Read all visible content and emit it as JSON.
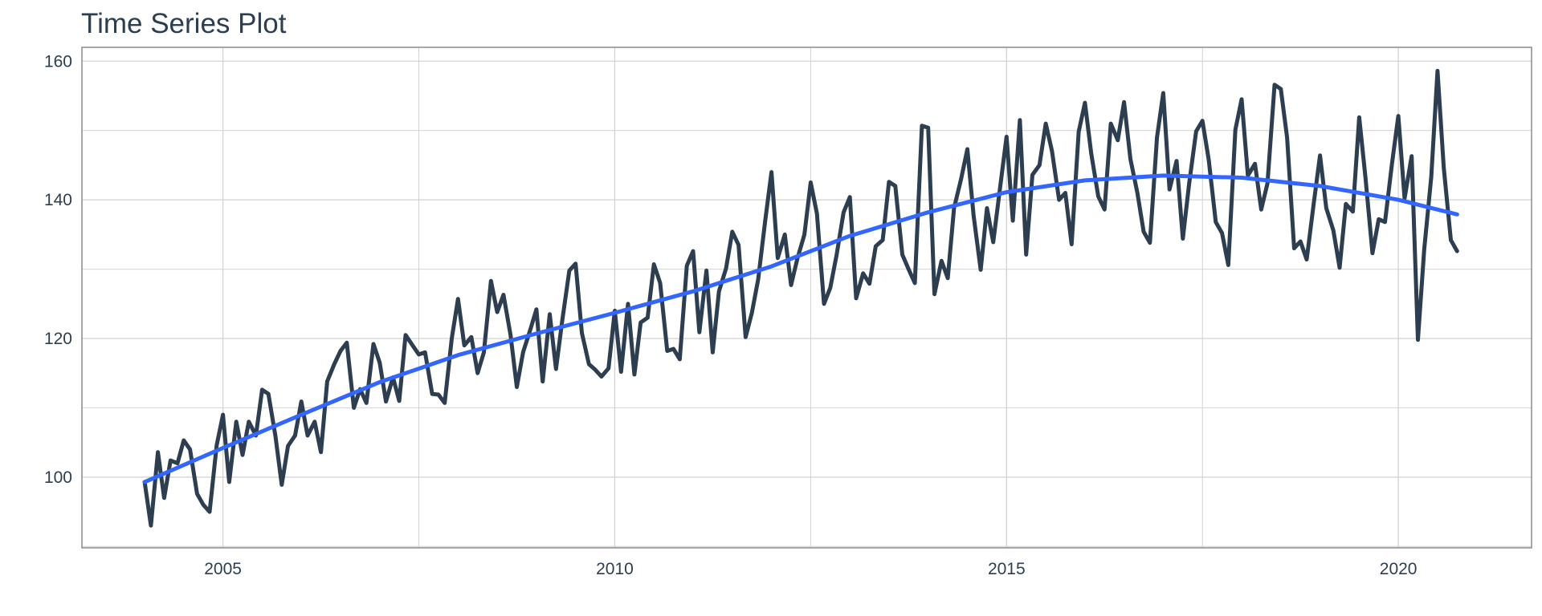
{
  "chart_data": {
    "type": "line",
    "title": "Time Series Plot",
    "xlabel": "",
    "ylabel": "",
    "xlim": [
      2003.2,
      2021.7
    ],
    "ylim": [
      89.8,
      162.0
    ],
    "x_ticks": [
      2005,
      2010,
      2015,
      2020
    ],
    "y_ticks": [
      100,
      120,
      140,
      160
    ],
    "grid": true,
    "colors": {
      "series": "#2c3e50",
      "smooth": "#3366ff",
      "grid": "#d2d2d2",
      "text": "#2c3e50"
    },
    "series": [
      {
        "values": [
          [
            2004.0,
            99.3
          ],
          [
            2004.08,
            93.0
          ],
          [
            2004.17,
            103.6
          ],
          [
            2004.25,
            97.0
          ],
          [
            2004.33,
            102.4
          ],
          [
            2004.42,
            102.0
          ],
          [
            2004.5,
            105.3
          ],
          [
            2004.58,
            104.0
          ],
          [
            2004.67,
            97.6
          ],
          [
            2004.75,
            96.0
          ],
          [
            2004.83,
            95.0
          ],
          [
            2004.92,
            104.6
          ],
          [
            2005.0,
            109.0
          ],
          [
            2005.08,
            99.3
          ],
          [
            2005.17,
            108.0
          ],
          [
            2005.25,
            103.2
          ],
          [
            2005.33,
            108.0
          ],
          [
            2005.42,
            106.0
          ],
          [
            2005.5,
            112.6
          ],
          [
            2005.58,
            112.0
          ],
          [
            2005.67,
            105.9
          ],
          [
            2005.75,
            98.9
          ],
          [
            2005.83,
            104.5
          ],
          [
            2005.92,
            106.0
          ],
          [
            2006.0,
            110.9
          ],
          [
            2006.08,
            106.0
          ],
          [
            2006.17,
            108.0
          ],
          [
            2006.25,
            103.6
          ],
          [
            2006.33,
            113.8
          ],
          [
            2006.42,
            116.3
          ],
          [
            2006.5,
            118.2
          ],
          [
            2006.58,
            119.4
          ],
          [
            2006.67,
            110.0
          ],
          [
            2006.75,
            112.7
          ],
          [
            2006.83,
            110.7
          ],
          [
            2006.92,
            119.2
          ],
          [
            2007.0,
            116.5
          ],
          [
            2007.08,
            110.9
          ],
          [
            2007.17,
            114.4
          ],
          [
            2007.25,
            111.0
          ],
          [
            2007.33,
            120.5
          ],
          [
            2007.42,
            119.0
          ],
          [
            2007.5,
            117.7
          ],
          [
            2007.58,
            118.0
          ],
          [
            2007.67,
            112.0
          ],
          [
            2007.75,
            111.9
          ],
          [
            2007.83,
            110.7
          ],
          [
            2007.92,
            120.0
          ],
          [
            2008.0,
            125.7
          ],
          [
            2008.08,
            119.0
          ],
          [
            2008.17,
            120.2
          ],
          [
            2008.25,
            115.0
          ],
          [
            2008.33,
            118.0
          ],
          [
            2008.42,
            128.3
          ],
          [
            2008.5,
            123.8
          ],
          [
            2008.58,
            126.3
          ],
          [
            2008.67,
            120.5
          ],
          [
            2008.75,
            113.0
          ],
          [
            2008.83,
            118.0
          ],
          [
            2008.92,
            121.2
          ],
          [
            2009.0,
            124.2
          ],
          [
            2009.08,
            113.8
          ],
          [
            2009.17,
            123.5
          ],
          [
            2009.25,
            115.6
          ],
          [
            2009.33,
            122.6
          ],
          [
            2009.42,
            129.8
          ],
          [
            2009.5,
            130.8
          ],
          [
            2009.58,
            120.8
          ],
          [
            2009.67,
            116.3
          ],
          [
            2009.75,
            115.5
          ],
          [
            2009.83,
            114.5
          ],
          [
            2009.92,
            115.7
          ],
          [
            2010.0,
            124.0
          ],
          [
            2010.08,
            115.2
          ],
          [
            2010.17,
            125.0
          ],
          [
            2010.25,
            114.8
          ],
          [
            2010.33,
            122.3
          ],
          [
            2010.42,
            123.0
          ],
          [
            2010.5,
            130.7
          ],
          [
            2010.58,
            128.0
          ],
          [
            2010.67,
            118.2
          ],
          [
            2010.75,
            118.5
          ],
          [
            2010.83,
            117.0
          ],
          [
            2010.92,
            130.5
          ],
          [
            2011.0,
            132.6
          ],
          [
            2011.08,
            120.9
          ],
          [
            2011.17,
            129.8
          ],
          [
            2011.25,
            118.0
          ],
          [
            2011.33,
            126.8
          ],
          [
            2011.42,
            130.1
          ],
          [
            2011.5,
            135.4
          ],
          [
            2011.58,
            133.5
          ],
          [
            2011.67,
            120.2
          ],
          [
            2011.75,
            123.7
          ],
          [
            2011.83,
            128.5
          ],
          [
            2011.92,
            137.0
          ],
          [
            2012.0,
            144.0
          ],
          [
            2012.08,
            131.6
          ],
          [
            2012.17,
            135.0
          ],
          [
            2012.25,
            127.7
          ],
          [
            2012.33,
            131.5
          ],
          [
            2012.42,
            135.0
          ],
          [
            2012.5,
            142.5
          ],
          [
            2012.58,
            138.0
          ],
          [
            2012.67,
            125.0
          ],
          [
            2012.75,
            127.3
          ],
          [
            2012.83,
            132.0
          ],
          [
            2012.92,
            138.2
          ],
          [
            2013.0,
            140.4
          ],
          [
            2013.08,
            125.8
          ],
          [
            2013.17,
            129.4
          ],
          [
            2013.25,
            127.9
          ],
          [
            2013.33,
            133.3
          ],
          [
            2013.42,
            134.2
          ],
          [
            2013.5,
            142.6
          ],
          [
            2013.58,
            142.0
          ],
          [
            2013.67,
            132.1
          ],
          [
            2013.75,
            130.0
          ],
          [
            2013.83,
            128.0
          ],
          [
            2013.92,
            150.7
          ],
          [
            2014.0,
            150.4
          ],
          [
            2014.08,
            126.4
          ],
          [
            2014.17,
            131.2
          ],
          [
            2014.25,
            128.7
          ],
          [
            2014.33,
            138.8
          ],
          [
            2014.42,
            143.0
          ],
          [
            2014.5,
            147.3
          ],
          [
            2014.58,
            137.7
          ],
          [
            2014.67,
            129.9
          ],
          [
            2014.75,
            138.8
          ],
          [
            2014.83,
            133.9
          ],
          [
            2014.92,
            142.0
          ],
          [
            2015.0,
            149.1
          ],
          [
            2015.08,
            137.0
          ],
          [
            2015.17,
            151.5
          ],
          [
            2015.25,
            132.1
          ],
          [
            2015.33,
            143.6
          ],
          [
            2015.42,
            145.0
          ],
          [
            2015.5,
            151.0
          ],
          [
            2015.58,
            147.0
          ],
          [
            2015.67,
            140.0
          ],
          [
            2015.75,
            141.0
          ],
          [
            2015.83,
            133.6
          ],
          [
            2015.92,
            149.8
          ],
          [
            2016.0,
            154.0
          ],
          [
            2016.08,
            146.7
          ],
          [
            2016.17,
            140.5
          ],
          [
            2016.25,
            138.6
          ],
          [
            2016.33,
            151.0
          ],
          [
            2016.42,
            148.6
          ],
          [
            2016.5,
            154.1
          ],
          [
            2016.58,
            145.9
          ],
          [
            2016.67,
            141.0
          ],
          [
            2016.75,
            135.4
          ],
          [
            2016.83,
            133.8
          ],
          [
            2016.92,
            149.0
          ],
          [
            2017.0,
            155.4
          ],
          [
            2017.08,
            141.5
          ],
          [
            2017.17,
            145.6
          ],
          [
            2017.25,
            134.4
          ],
          [
            2017.33,
            142.3
          ],
          [
            2017.42,
            149.9
          ],
          [
            2017.5,
            151.4
          ],
          [
            2017.58,
            145.8
          ],
          [
            2017.67,
            136.8
          ],
          [
            2017.75,
            135.2
          ],
          [
            2017.83,
            130.6
          ],
          [
            2017.92,
            150.1
          ],
          [
            2018.0,
            154.5
          ],
          [
            2018.08,
            143.5
          ],
          [
            2018.17,
            145.2
          ],
          [
            2018.25,
            138.6
          ],
          [
            2018.33,
            142.4
          ],
          [
            2018.42,
            156.6
          ],
          [
            2018.5,
            156.0
          ],
          [
            2018.58,
            149.0
          ],
          [
            2018.67,
            133.0
          ],
          [
            2018.75,
            134.0
          ],
          [
            2018.83,
            131.4
          ],
          [
            2018.92,
            139.5
          ],
          [
            2019.0,
            146.4
          ],
          [
            2019.08,
            138.8
          ],
          [
            2019.17,
            135.6
          ],
          [
            2019.25,
            130.2
          ],
          [
            2019.33,
            139.4
          ],
          [
            2019.42,
            138.3
          ],
          [
            2019.5,
            151.9
          ],
          [
            2019.58,
            143.2
          ],
          [
            2019.67,
            132.3
          ],
          [
            2019.75,
            137.2
          ],
          [
            2019.83,
            136.8
          ],
          [
            2019.92,
            145.3
          ],
          [
            2020.0,
            152.1
          ],
          [
            2020.08,
            140.2
          ],
          [
            2020.17,
            146.3
          ],
          [
            2020.25,
            119.8
          ],
          [
            2020.33,
            132.8
          ],
          [
            2020.42,
            143.3
          ],
          [
            2020.5,
            158.6
          ],
          [
            2020.58,
            144.6
          ],
          [
            2020.67,
            134.2
          ],
          [
            2020.75,
            132.6
          ]
        ]
      },
      {
        "values": [
          [
            2004.0,
            99.3
          ],
          [
            2005.0,
            104.2
          ],
          [
            2006.0,
            109.0
          ],
          [
            2007.0,
            113.7
          ],
          [
            2008.0,
            117.6
          ],
          [
            2009.0,
            120.7
          ],
          [
            2010.0,
            123.7
          ],
          [
            2011.0,
            126.8
          ],
          [
            2012.0,
            130.4
          ],
          [
            2013.0,
            134.8
          ],
          [
            2014.0,
            138.2
          ],
          [
            2015.0,
            141.1
          ],
          [
            2016.0,
            142.8
          ],
          [
            2017.0,
            143.5
          ],
          [
            2018.0,
            143.2
          ],
          [
            2019.0,
            142.0
          ],
          [
            2020.0,
            140.0
          ],
          [
            2020.75,
            137.9
          ]
        ]
      }
    ]
  }
}
